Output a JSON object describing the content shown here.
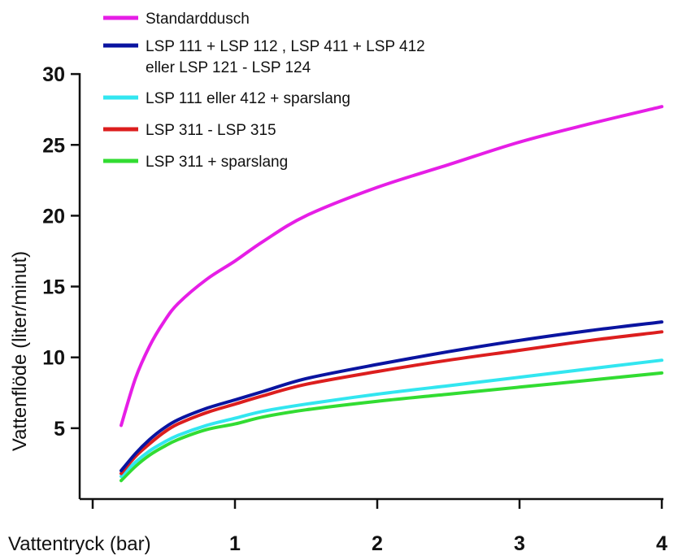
{
  "chart_data": {
    "type": "line",
    "title": "",
    "xlabel": "Vattentryck (bar)",
    "ylabel": "Vattenflöde (liter/minut)",
    "xlim": [
      0,
      4
    ],
    "ylim": [
      0,
      30
    ],
    "x_ticks": [
      1,
      2,
      3,
      4
    ],
    "y_ticks": [
      5,
      10,
      15,
      20,
      25,
      30
    ],
    "grid": false,
    "legend_position": "top-left",
    "series": [
      {
        "name": "Standarddusch",
        "color": "#e61ee6",
        "x": [
          0.2,
          0.3,
          0.4,
          0.5,
          0.6,
          0.8,
          1.0,
          1.2,
          1.5,
          2.0,
          2.5,
          3.0,
          3.5,
          4.0
        ],
        "y": [
          5.2,
          8.5,
          10.8,
          12.5,
          13.8,
          15.5,
          16.8,
          18.2,
          20.0,
          22.0,
          23.6,
          25.2,
          26.5,
          27.7
        ]
      },
      {
        "name": "LSP 111 + LSP 112 , LSP 411 + LSP 412",
        "name_line2": "eller LSP 121 - LSP 124",
        "color": "#0a14a0",
        "x": [
          0.2,
          0.3,
          0.4,
          0.5,
          0.6,
          0.8,
          1.0,
          1.2,
          1.5,
          2.0,
          2.5,
          3.0,
          3.5,
          4.0
        ],
        "y": [
          2.0,
          3.2,
          4.2,
          5.0,
          5.6,
          6.4,
          7.0,
          7.6,
          8.5,
          9.5,
          10.4,
          11.2,
          11.9,
          12.5
        ]
      },
      {
        "name": "LSP 111 eller 412 + sparslang",
        "color": "#32e6f0",
        "x": [
          0.2,
          0.3,
          0.4,
          0.5,
          0.6,
          0.8,
          1.0,
          1.2,
          1.5,
          2.0,
          2.5,
          3.0,
          3.5,
          4.0
        ],
        "y": [
          1.6,
          2.6,
          3.4,
          4.0,
          4.5,
          5.2,
          5.7,
          6.2,
          6.7,
          7.4,
          8.0,
          8.6,
          9.2,
          9.8
        ]
      },
      {
        "name": "LSP 311 - LSP 315",
        "color": "#dc1e1e",
        "x": [
          0.2,
          0.3,
          0.4,
          0.5,
          0.6,
          0.8,
          1.0,
          1.2,
          1.5,
          2.0,
          2.5,
          3.0,
          3.5,
          4.0
        ],
        "y": [
          1.8,
          3.0,
          3.9,
          4.7,
          5.3,
          6.1,
          6.7,
          7.3,
          8.1,
          9.0,
          9.8,
          10.5,
          11.2,
          11.8
        ]
      },
      {
        "name": "LSP 311 + sparslang",
        "color": "#32dc32",
        "x": [
          0.2,
          0.3,
          0.4,
          0.5,
          0.6,
          0.8,
          1.0,
          1.2,
          1.5,
          2.0,
          2.5,
          3.0,
          3.5,
          4.0
        ],
        "y": [
          1.3,
          2.3,
          3.1,
          3.7,
          4.2,
          4.9,
          5.3,
          5.8,
          6.3,
          6.9,
          7.4,
          7.9,
          8.4,
          8.9
        ]
      }
    ]
  }
}
